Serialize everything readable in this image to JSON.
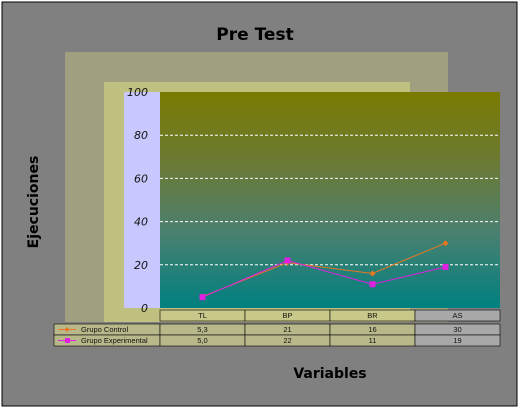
{
  "chart_data": {
    "type": "line",
    "title": "Pre Test",
    "xlabel": "Variables",
    "ylabel": "Ejecuciones",
    "categories": [
      "TL",
      "BP",
      "BR",
      "AS"
    ],
    "ylim": [
      0,
      100
    ],
    "yticks": [
      "0",
      "20",
      "40",
      "60",
      "80",
      "100"
    ],
    "grid": true,
    "series": [
      {
        "name": "Grupo Control",
        "values": [
          5.3,
          21,
          16,
          30
        ],
        "labels": [
          "5,3",
          "21",
          "16",
          "30"
        ],
        "color": "#e87722"
      },
      {
        "name": "Grupo Experimental",
        "values": [
          5.0,
          22,
          11,
          19
        ],
        "labels": [
          "5,0",
          "22",
          "11",
          "19"
        ],
        "color": "#e020e0"
      }
    ],
    "colors": {
      "outer_background": "#7f7f7f",
      "plot_top": "#7a7a00",
      "plot_bottom": "#008080",
      "table_cell": "#b8b88a"
    }
  }
}
